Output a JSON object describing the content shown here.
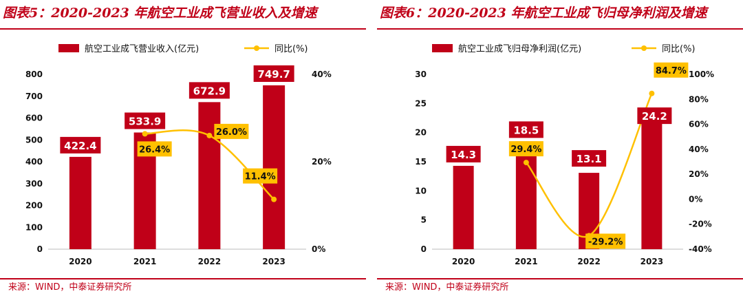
{
  "charts": [
    {
      "panel_title": "图表5：2020-2023 年航空工业成飞营业收入及增速",
      "source": "来源：WIND，中泰证券研究所",
      "chart_data": {
        "type": "bar",
        "categories": [
          "2020",
          "2021",
          "2022",
          "2023"
        ],
        "series": [
          {
            "name": "航空工业成飞营业收入(亿元)",
            "type": "bar",
            "axis": "left",
            "values": [
              422.4,
              533.9,
              672.9,
              749.7
            ],
            "labels": [
              "422.4",
              "533.9",
              "672.9",
              "749.7"
            ]
          },
          {
            "name": "同比(%)",
            "type": "line",
            "axis": "right",
            "smooth": true,
            "x": [
              "2021",
              "2022",
              "2023"
            ],
            "values": [
              26.4,
              26.0,
              11.4
            ],
            "labels": [
              "26.4%",
              "26.0%",
              "11.4%"
            ]
          }
        ],
        "y_left": {
          "min": 0,
          "max": 800,
          "ticks": [
            "0",
            "100",
            "200",
            "300",
            "400",
            "500",
            "600",
            "700",
            "800"
          ]
        },
        "y_right": {
          "min": 0,
          "max": 40,
          "ticks": [
            "0%",
            "20%",
            "40%"
          ]
        },
        "grid": false,
        "legend_position": "top",
        "colors": {
          "bar": "#c00018",
          "line": "#ffc000",
          "label_bg": "#c00018",
          "pct_bg": "#ffc000"
        }
      }
    },
    {
      "panel_title": "图表6：2020-2023 年航空工业成飞归母净利润及增速",
      "source": "来源：WIND，中泰证券研究所",
      "chart_data": {
        "type": "bar",
        "categories": [
          "2020",
          "2021",
          "2022",
          "2023"
        ],
        "series": [
          {
            "name": "航空工业成飞归母净利润(亿元)",
            "type": "bar",
            "axis": "left",
            "values": [
              14.3,
              18.5,
              13.1,
              24.2
            ],
            "labels": [
              "14.3",
              "18.5",
              "13.1",
              "24.2"
            ]
          },
          {
            "name": "同比(%)",
            "type": "line",
            "axis": "right",
            "smooth": true,
            "x": [
              "2021",
              "2022",
              "2023"
            ],
            "values": [
              29.4,
              -29.2,
              84.7
            ],
            "labels": [
              "29.4%",
              "-29.2%",
              "84.7%"
            ]
          }
        ],
        "y_left": {
          "min": 0,
          "max": 30,
          "ticks": [
            "0",
            "5",
            "10",
            "15",
            "20",
            "25",
            "30"
          ]
        },
        "y_right": {
          "min": -40,
          "max": 100,
          "ticks": [
            "-40%",
            "-20%",
            "0%",
            "20%",
            "40%",
            "60%",
            "80%",
            "100%"
          ]
        },
        "grid": false,
        "legend_position": "top",
        "colors": {
          "bar": "#c00018",
          "line": "#ffc000",
          "label_bg": "#c00018",
          "pct_bg": "#ffc000"
        }
      }
    }
  ]
}
